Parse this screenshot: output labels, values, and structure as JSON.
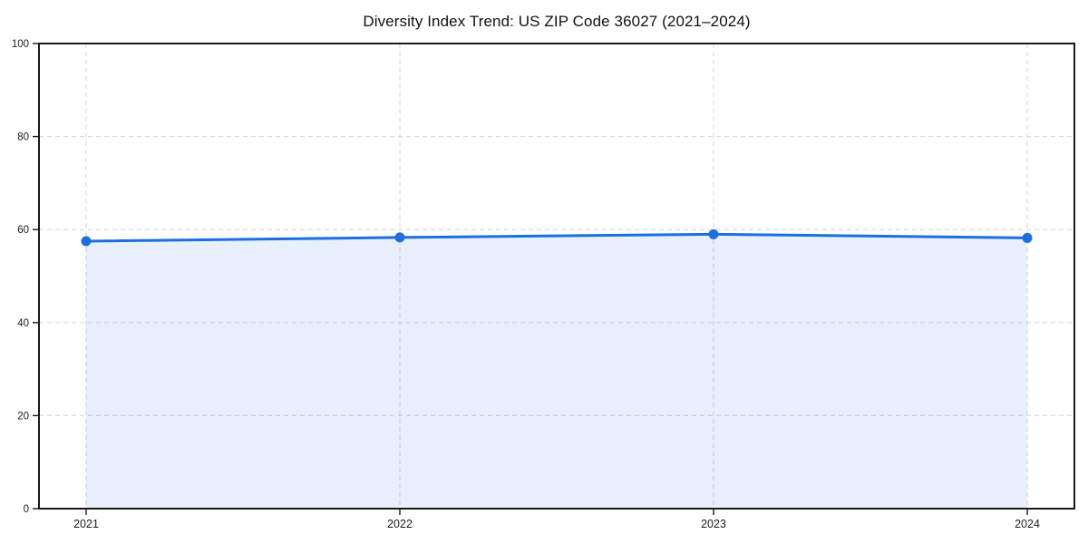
{
  "chart_data": {
    "type": "area",
    "title": "Diversity Index Trend: US ZIP Code 36027 (2021–2024)",
    "categories": [
      "2021",
      "2022",
      "2023",
      "2024"
    ],
    "values": [
      57.5,
      58.3,
      59.0,
      58.2
    ],
    "xlabel": "",
    "ylabel": "",
    "ylim": [
      0,
      100
    ],
    "yticks": [
      0,
      20,
      40,
      60,
      80,
      100
    ],
    "grid": "dashed-both-axes",
    "legend": "none",
    "colors": {
      "line": "#1b6fe0",
      "marker": "#1b6fe0",
      "fill": "rgba(27, 111, 224, 0.10)",
      "gridline": "#dcdcdc",
      "spine": "#1a1a1a",
      "tick_text": "#1a1a1a",
      "title_text": "#111111",
      "background": "#ffffff"
    }
  }
}
